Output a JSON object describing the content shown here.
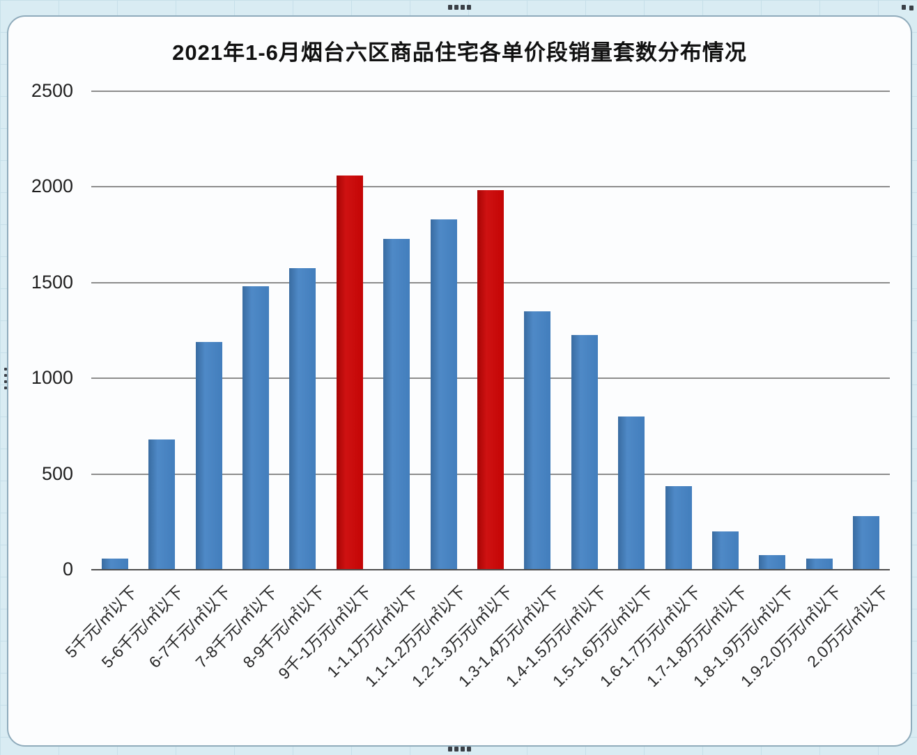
{
  "spreadsheet": {
    "background_color": "#d9ecf3",
    "gridline_color": "#c6dfe9"
  },
  "chart": {
    "background_color": "#fcfdfe",
    "border_color": "#8fabbb",
    "bar_color": "#4583c4",
    "highlight_bar_color": "#cc0505",
    "gridline_color": "#8c8c8c",
    "axis_line_color": "#4d4d4d"
  },
  "chart_data": {
    "type": "bar",
    "title": "2021年1-6月烟台六区商品住宅各单价段销量套数分布情况",
    "categories": [
      "5千元/㎡以下",
      "5-6千元/㎡以下",
      "6-7千元/㎡以下",
      "7-8千元/㎡以下",
      "8-9千元/㎡以下",
      "9千-1万元/㎡以下",
      "1-1.1万元/㎡以下",
      "1.1-1.2万元/㎡以下",
      "1.2-1.3万元/㎡以下",
      "1.3-1.4万元/㎡以下",
      "1.4-1.5万元/㎡以下",
      "1.5-1.6万元/㎡以下",
      "1.6-1.7万元/㎡以下",
      "1.7-1.8万元/㎡以下",
      "1.8-1.9万元/㎡以下",
      "1.9-2.0万元/㎡以下",
      "2.0万元/㎡以下"
    ],
    "values": [
      60,
      680,
      1190,
      1480,
      1575,
      2060,
      1730,
      1830,
      1985,
      1350,
      1225,
      800,
      435,
      200,
      75,
      60,
      280
    ],
    "highlight_indexes": [
      5,
      8
    ],
    "xlabel": "",
    "ylabel": "",
    "ylim": [
      0,
      2500
    ],
    "yticks": [
      0,
      500,
      1000,
      1500,
      2000,
      2500
    ],
    "grid": true,
    "legend": false,
    "x_tick_rotation_deg": 45
  }
}
